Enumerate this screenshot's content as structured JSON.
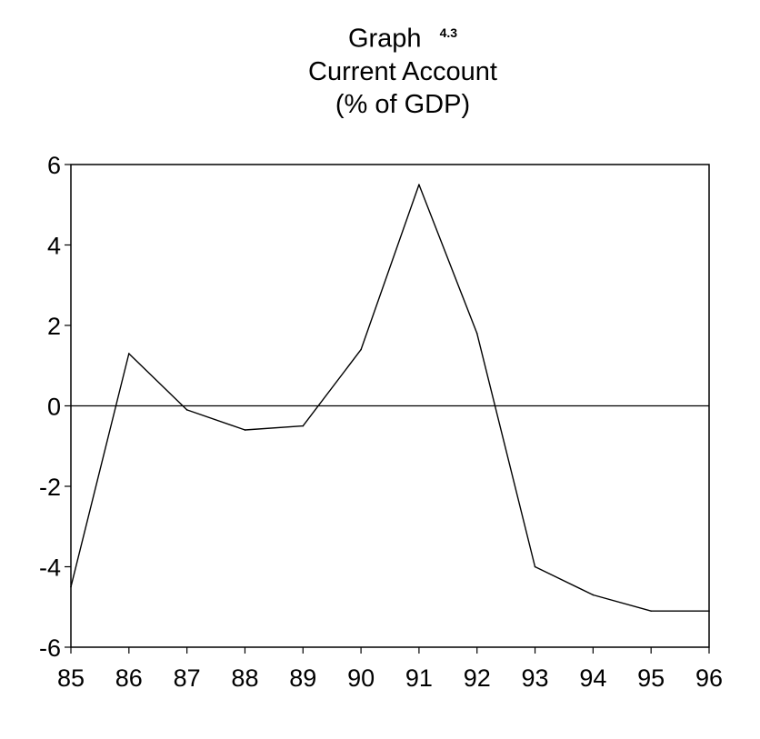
{
  "chart_data": {
    "type": "line",
    "title": "Graph",
    "graph_number": "4.3",
    "subtitle": "Current Account",
    "subtitle2": "(% of GDP)",
    "xlabel": "",
    "ylabel": "",
    "x": [
      "85",
      "86",
      "87",
      "88",
      "89",
      "90",
      "91",
      "92",
      "93",
      "94",
      "95",
      "96"
    ],
    "series": [
      {
        "values": [
          -4.5,
          1.3,
          -0.1,
          -0.6,
          -0.5,
          1.4,
          5.5,
          1.8,
          -4.0,
          -4.7,
          -5.1,
          -5.1
        ]
      }
    ],
    "ylim": [
      -6,
      6
    ],
    "yticks": [
      "6",
      "4",
      "2",
      "0",
      "-2",
      "-4",
      "-6"
    ],
    "zero_line": true,
    "grid": false,
    "line_color": "#000000"
  }
}
